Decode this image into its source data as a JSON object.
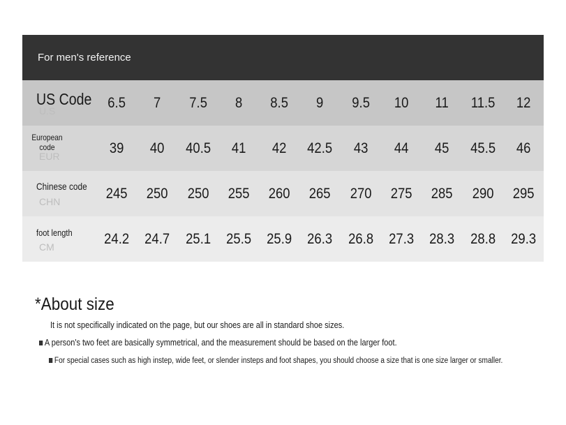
{
  "header": {
    "title": "For men's reference"
  },
  "rows": [
    {
      "label": "US Code",
      "sub": "U.S",
      "bg": "#c6c6c6",
      "values": [
        "6.5",
        "7",
        "7.5",
        "8",
        "8.5",
        "9",
        "9.5",
        "10",
        "11",
        "11.5",
        "12"
      ]
    },
    {
      "label": "European code",
      "sub": "EUR",
      "bg": "#d6d6d6",
      "values": [
        "39",
        "40",
        "40.5",
        "41",
        "42",
        "42.5",
        "43",
        "44",
        "45",
        "45.5",
        "46"
      ]
    },
    {
      "label": "Chinese code",
      "sub": "CHN",
      "bg": "#e3e3e3",
      "values": [
        "245",
        "250",
        "250",
        "255",
        "260",
        "265",
        "270",
        "275",
        "285",
        "290",
        "295"
      ]
    },
    {
      "label": "foot length",
      "sub": "CM",
      "bg": "#ececec",
      "values": [
        "24.2",
        "24.7",
        "25.1",
        "25.5",
        "25.9",
        "26.3",
        "26.8",
        "27.3",
        "28.3",
        "28.8",
        "29.3"
      ]
    }
  ],
  "about": {
    "title": "*About size",
    "line1": "It is not specifically indicated on the page, but our shoes are all in standard shoe sizes.",
    "line2": "A person's two feet are basically symmetrical, and the measurement should be based on the larger foot.",
    "line3": "For special cases such as high instep, wide feet, or slender insteps and foot shapes, you should choose a size that is one size larger or smaller."
  }
}
